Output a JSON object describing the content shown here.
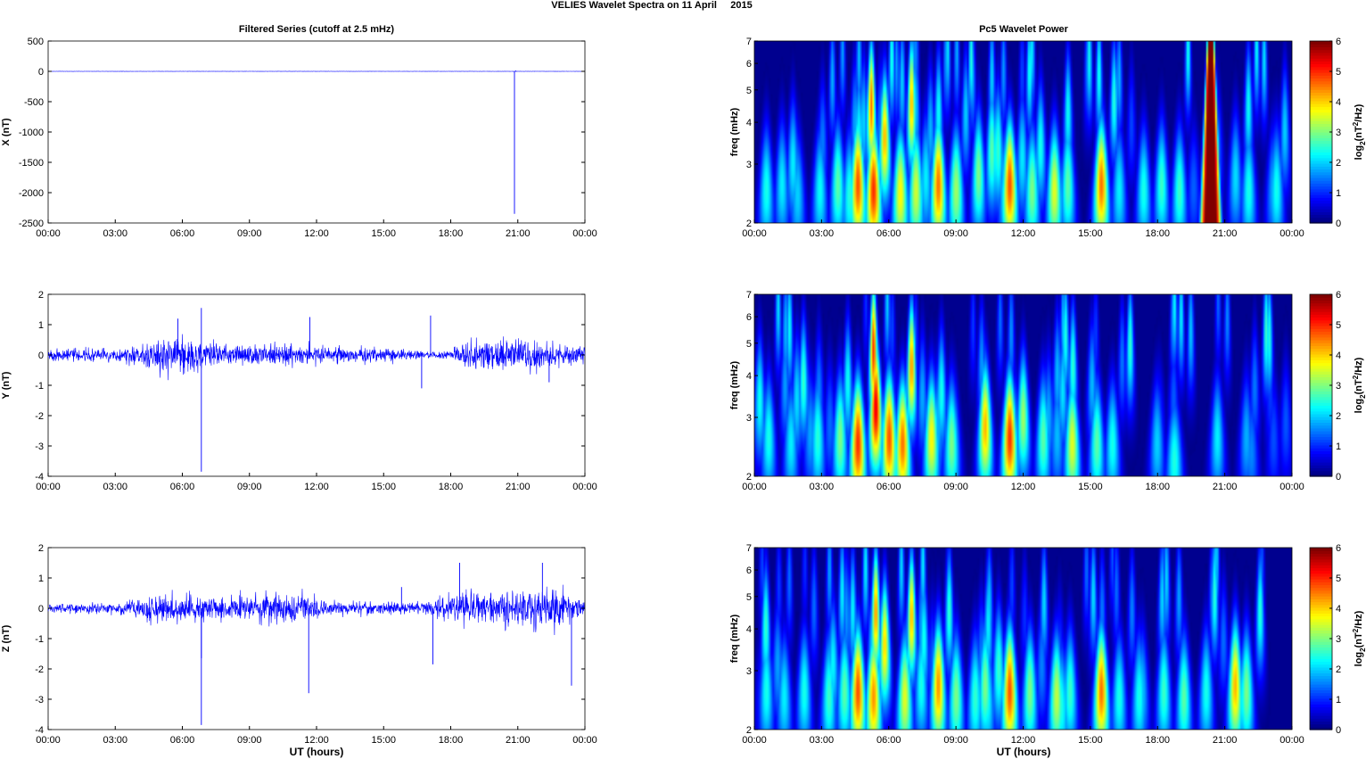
{
  "figure": {
    "suptitle": "VELIES Wavelet Spectra on 11 April     2015",
    "left_title": "Filtered Series (cutoff at 2.5 mHz)",
    "right_title": "Pc5 Wavelet Power",
    "xlabel": "UT (hours)"
  },
  "chart_data": [
    {
      "type": "line",
      "component": "X",
      "ylabel": "X (nT)",
      "x_ticks": [
        "00:00",
        "03:00",
        "06:00",
        "09:00",
        "12:00",
        "15:00",
        "18:00",
        "21:00",
        "00:00"
      ],
      "xlim_hours": [
        0,
        24
      ],
      "ylim": [
        -2500,
        500
      ],
      "y_ticks": [
        500,
        0,
        -500,
        -1000,
        -1500,
        -2000,
        -2500
      ],
      "noise_amplitude": 3,
      "spikes": [
        {
          "t": 20.85,
          "v": -2350
        },
        {
          "t": 20.9,
          "v": 15
        }
      ],
      "line_color": "#0000ff"
    },
    {
      "type": "line",
      "component": "Y",
      "ylabel": "Y (nT)",
      "x_ticks": [
        "00:00",
        "03:00",
        "06:00",
        "09:00",
        "12:00",
        "15:00",
        "18:00",
        "21:00",
        "00:00"
      ],
      "xlim_hours": [
        0,
        24
      ],
      "ylim": [
        -4,
        2
      ],
      "y_ticks": [
        2,
        1,
        0,
        -1,
        -2,
        -3,
        -4
      ],
      "activity": [
        [
          0,
          0.18
        ],
        [
          3,
          0.18
        ],
        [
          5.2,
          0.5
        ],
        [
          6.5,
          0.5
        ],
        [
          7.5,
          0.25
        ],
        [
          11,
          0.3
        ],
        [
          13,
          0.22
        ],
        [
          16,
          0.15
        ],
        [
          17,
          0.08
        ],
        [
          18,
          0.12
        ],
        [
          18.5,
          0.35
        ],
        [
          21.5,
          0.4
        ],
        [
          24,
          0.2
        ]
      ],
      "spikes": [
        {
          "t": 6.85,
          "v": -3.85
        },
        {
          "t": 6.85,
          "v": 1.55
        },
        {
          "t": 5.8,
          "v": 1.2
        },
        {
          "t": 11.7,
          "v": 1.25
        },
        {
          "t": 16.7,
          "v": -1.1
        },
        {
          "t": 17.1,
          "v": 1.3
        },
        {
          "t": 22.4,
          "v": -0.9
        }
      ],
      "line_color": "#0000ff"
    },
    {
      "type": "line",
      "component": "Z",
      "ylabel": "Z (nT)",
      "x_ticks": [
        "00:00",
        "03:00",
        "06:00",
        "09:00",
        "12:00",
        "15:00",
        "18:00",
        "21:00",
        "00:00"
      ],
      "xlim_hours": [
        0,
        24
      ],
      "ylim": [
        -4,
        2
      ],
      "y_ticks": [
        2,
        1,
        0,
        -1,
        -2,
        -3,
        -4
      ],
      "activity": [
        [
          0,
          0.12
        ],
        [
          3,
          0.15
        ],
        [
          5,
          0.4
        ],
        [
          7,
          0.35
        ],
        [
          11,
          0.4
        ],
        [
          13,
          0.2
        ],
        [
          16,
          0.15
        ],
        [
          17.5,
          0.25
        ],
        [
          18.5,
          0.45
        ],
        [
          23,
          0.5
        ],
        [
          24,
          0.15
        ]
      ],
      "spikes": [
        {
          "t": 6.85,
          "v": -3.85
        },
        {
          "t": 6.85,
          "v": -1.65
        },
        {
          "t": 11.65,
          "v": -2.8
        },
        {
          "t": 17.2,
          "v": -1.85
        },
        {
          "t": 18.4,
          "v": 1.5
        },
        {
          "t": 22.1,
          "v": 1.5
        },
        {
          "t": 23.4,
          "v": -2.55
        },
        {
          "t": 15.8,
          "v": 0.7
        }
      ],
      "line_color": "#0000ff"
    },
    {
      "type": "heatmap",
      "component": "X",
      "ylabel": "freq (mHz)",
      "x_ticks": [
        "00:00",
        "03:00",
        "06:00",
        "09:00",
        "12:00",
        "15:00",
        "18:00",
        "21:00",
        "00:00"
      ],
      "y_ticks": [
        "2",
        "3",
        "4",
        "5",
        "6",
        "7"
      ],
      "ylim_mHz": [
        2,
        7
      ],
      "y_scale": "log",
      "colorbar_label": "log2(nT^2/Hz)",
      "colorbar_ticks": [
        0,
        1,
        2,
        3,
        4,
        5,
        6
      ],
      "clim": [
        0,
        6
      ],
      "colormap": "jet",
      "background_color": "#00008f",
      "blobs": [
        {
          "t": 0.5,
          "f": 2.5,
          "p": 2.4
        },
        {
          "t": 1.2,
          "f": 2.6,
          "p": 2.2
        },
        {
          "t": 1.9,
          "f": 2.4,
          "p": 2.0
        },
        {
          "t": 2.9,
          "f": 2.5,
          "p": 2.3
        },
        {
          "t": 3.7,
          "f": 2.6,
          "p": 2.8
        },
        {
          "t": 4.6,
          "f": 2.6,
          "p": 4.8
        },
        {
          "t": 5.3,
          "f": 2.5,
          "p": 5.0
        },
        {
          "t": 5.2,
          "f": 4.5,
          "p": 4.6
        },
        {
          "t": 5.8,
          "f": 3.6,
          "p": 4.2
        },
        {
          "t": 6.5,
          "f": 2.45,
          "p": 3.8
        },
        {
          "t": 7.2,
          "f": 2.5,
          "p": 3.5
        },
        {
          "t": 7.0,
          "f": 4.6,
          "p": 4.2
        },
        {
          "t": 8.2,
          "f": 2.6,
          "p": 4.6
        },
        {
          "t": 9.0,
          "f": 2.5,
          "p": 3.2
        },
        {
          "t": 10.0,
          "f": 2.8,
          "p": 3.0
        },
        {
          "t": 10.6,
          "f": 3.3,
          "p": 2.8
        },
        {
          "t": 11.4,
          "f": 2.6,
          "p": 4.8
        },
        {
          "t": 12.4,
          "f": 2.5,
          "p": 3.0
        },
        {
          "t": 13.4,
          "f": 2.5,
          "p": 3.6
        },
        {
          "t": 14.0,
          "f": 2.6,
          "p": 2.8
        },
        {
          "t": 15.5,
          "f": 2.6,
          "p": 4.6
        },
        {
          "t": 16.3,
          "f": 2.5,
          "p": 2.2
        },
        {
          "t": 17.4,
          "f": 2.5,
          "p": 2.4
        },
        {
          "t": 18.2,
          "f": 2.6,
          "p": 2.6
        },
        {
          "t": 19.0,
          "f": 2.5,
          "p": 2.6
        },
        {
          "t": 22.1,
          "f": 2.5,
          "p": 2.4
        },
        {
          "t": 23.2,
          "f": 2.5,
          "p": 1.8
        }
      ],
      "event": {
        "t": 20.4,
        "f_low": 2,
        "f_high": 7,
        "p": 6.5
      }
    },
    {
      "type": "heatmap",
      "component": "Y",
      "ylabel": "freq (mHz)",
      "x_ticks": [
        "00:00",
        "03:00",
        "06:00",
        "09:00",
        "12:00",
        "15:00",
        "18:00",
        "21:00",
        "00:00"
      ],
      "y_ticks": [
        "2",
        "3",
        "4",
        "5",
        "6",
        "7"
      ],
      "ylim_mHz": [
        2,
        7
      ],
      "y_scale": "log",
      "colorbar_label": "log2(nT^2/Hz)",
      "colorbar_ticks": [
        0,
        1,
        2,
        3,
        4,
        5,
        6
      ],
      "clim": [
        0,
        6
      ],
      "colormap": "jet",
      "background_color": "#00008f",
      "blobs": [
        {
          "t": 0.6,
          "f": 2.6,
          "p": 2.4
        },
        {
          "t": 1.6,
          "f": 2.5,
          "p": 2.2
        },
        {
          "t": 2.8,
          "f": 2.6,
          "p": 2.5
        },
        {
          "t": 3.8,
          "f": 2.6,
          "p": 3.0
        },
        {
          "t": 4.6,
          "f": 2.5,
          "p": 5.0
        },
        {
          "t": 5.4,
          "f": 3.2,
          "p": 5.4
        },
        {
          "t": 5.3,
          "f": 4.8,
          "p": 5.0
        },
        {
          "t": 6.0,
          "f": 2.6,
          "p": 4.8
        },
        {
          "t": 6.6,
          "f": 2.5,
          "p": 4.6
        },
        {
          "t": 7.0,
          "f": 4.3,
          "p": 4.4
        },
        {
          "t": 7.9,
          "f": 2.6,
          "p": 3.8
        },
        {
          "t": 8.8,
          "f": 2.5,
          "p": 3.0
        },
        {
          "t": 10.3,
          "f": 2.8,
          "p": 4.2
        },
        {
          "t": 11.4,
          "f": 2.6,
          "p": 5.0
        },
        {
          "t": 12.0,
          "f": 3.0,
          "p": 3.2
        },
        {
          "t": 12.9,
          "f": 2.6,
          "p": 2.8
        },
        {
          "t": 14.2,
          "f": 2.5,
          "p": 3.6
        },
        {
          "t": 15.3,
          "f": 2.5,
          "p": 2.8
        },
        {
          "t": 16.0,
          "f": 2.5,
          "p": 2.4
        },
        {
          "t": 18.0,
          "f": 2.5,
          "p": 2.0
        },
        {
          "t": 20.7,
          "f": 2.6,
          "p": 2.2
        },
        {
          "t": 22.0,
          "f": 2.6,
          "p": 1.8
        }
      ]
    },
    {
      "type": "heatmap",
      "component": "Z",
      "ylabel": "freq (mHz)",
      "x_ticks": [
        "00:00",
        "03:00",
        "06:00",
        "09:00",
        "12:00",
        "15:00",
        "18:00",
        "21:00",
        "00:00"
      ],
      "y_ticks": [
        "2",
        "3",
        "4",
        "5",
        "6",
        "7"
      ],
      "ylim_mHz": [
        2,
        7
      ],
      "y_scale": "log",
      "colorbar_label": "log2(nT^2/Hz)",
      "colorbar_ticks": [
        0,
        1,
        2,
        3,
        4,
        5,
        6
      ],
      "clim": [
        0,
        6
      ],
      "colormap": "jet",
      "background_color": "#00008f",
      "blobs": [
        {
          "t": 0.5,
          "f": 2.6,
          "p": 2.4
        },
        {
          "t": 1.3,
          "f": 2.5,
          "p": 2.2
        },
        {
          "t": 2.2,
          "f": 2.6,
          "p": 2.4
        },
        {
          "t": 3.3,
          "f": 2.5,
          "p": 2.6
        },
        {
          "t": 4.0,
          "f": 2.6,
          "p": 2.8
        },
        {
          "t": 4.6,
          "f": 2.6,
          "p": 4.8
        },
        {
          "t": 5.3,
          "f": 2.5,
          "p": 4.4
        },
        {
          "t": 5.4,
          "f": 4.5,
          "p": 4.4
        },
        {
          "t": 5.8,
          "f": 3.6,
          "p": 4.0
        },
        {
          "t": 6.7,
          "f": 2.5,
          "p": 3.6
        },
        {
          "t": 7.0,
          "f": 4.4,
          "p": 4.2
        },
        {
          "t": 8.2,
          "f": 2.7,
          "p": 4.4
        },
        {
          "t": 9.0,
          "f": 2.5,
          "p": 3.0
        },
        {
          "t": 10.3,
          "f": 2.7,
          "p": 3.0
        },
        {
          "t": 11.4,
          "f": 2.6,
          "p": 4.8
        },
        {
          "t": 12.3,
          "f": 2.6,
          "p": 3.0
        },
        {
          "t": 13.5,
          "f": 2.5,
          "p": 3.4
        },
        {
          "t": 14.1,
          "f": 2.6,
          "p": 2.6
        },
        {
          "t": 15.5,
          "f": 2.6,
          "p": 4.6
        },
        {
          "t": 16.3,
          "f": 2.5,
          "p": 2.4
        },
        {
          "t": 17.2,
          "f": 2.5,
          "p": 2.4
        },
        {
          "t": 18.3,
          "f": 2.6,
          "p": 2.6
        },
        {
          "t": 19.2,
          "f": 2.5,
          "p": 2.8
        },
        {
          "t": 20.2,
          "f": 2.6,
          "p": 2.4
        },
        {
          "t": 21.5,
          "f": 2.7,
          "p": 4.2
        },
        {
          "t": 22.0,
          "f": 2.6,
          "p": 3.0
        }
      ]
    }
  ]
}
